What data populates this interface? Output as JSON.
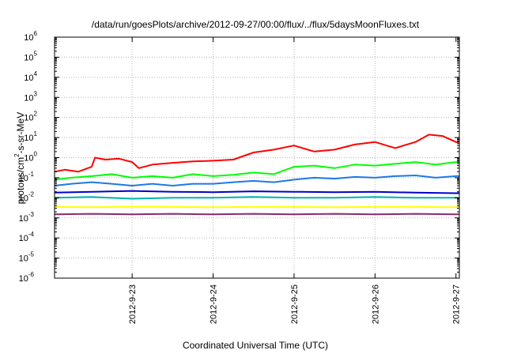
{
  "chart_data": {
    "type": "line",
    "title": "/data/run/goesPlots/archive/2012-09-27/00:00/flux/../flux/5daysMoonFluxes.txt",
    "xlabel": "Coordinated Universal Time (UTC)",
    "ylabel": "protons/cm²-s-sr-MeV",
    "ylabel_parts": {
      "pre": "protons/cm",
      "sup": "2",
      "post": "-s-sr-MeV"
    },
    "y_scale": "log",
    "ylim": [
      1e-06,
      1000000.0
    ],
    "y_ticks": [
      {
        "base": "10",
        "exp": "-6",
        "value": 1e-06
      },
      {
        "base": "10",
        "exp": "-5",
        "value": 1e-05
      },
      {
        "base": "10",
        "exp": "-4",
        "value": 0.0001
      },
      {
        "base": "10",
        "exp": "-3",
        "value": 0.001
      },
      {
        "base": "10",
        "exp": "-2",
        "value": 0.01
      },
      {
        "base": "10",
        "exp": "-1",
        "value": 0.1
      },
      {
        "base": "10",
        "exp": "0",
        "value": 1
      },
      {
        "base": "10",
        "exp": "1",
        "value": 10
      },
      {
        "base": "10",
        "exp": "2",
        "value": 100
      },
      {
        "base": "10",
        "exp": "3",
        "value": 1000
      },
      {
        "base": "10",
        "exp": "4",
        "value": 10000
      },
      {
        "base": "10",
        "exp": "5",
        "value": 100000
      },
      {
        "base": "10",
        "exp": "6",
        "value": 1000000
      }
    ],
    "x_ticks": [
      "2012-9-23",
      "2012-9-24",
      "2012-9-25",
      "2012-9-26",
      "2012-9-27"
    ],
    "xlim": [
      "2012-09-22 01:00",
      "2012-09-27 01:00"
    ],
    "grid": true,
    "legend": "none",
    "series": [
      {
        "color": "#ff0000",
        "x": [
          "2012-09-22 01:00",
          "2012-09-22 04:00",
          "2012-09-22 08:00",
          "2012-09-22 12:00",
          "2012-09-22 13:00",
          "2012-09-22 16:00",
          "2012-09-22 20:00",
          "2012-09-23 00:00",
          "2012-09-23 02:00",
          "2012-09-23 06:00",
          "2012-09-23 12:00",
          "2012-09-23 18:00",
          "2012-09-24 00:00",
          "2012-09-24 06:00",
          "2012-09-24 12:00",
          "2012-09-24 18:00",
          "2012-09-25 00:00",
          "2012-09-25 06:00",
          "2012-09-25 12:00",
          "2012-09-25 18:00",
          "2012-09-26 00:00",
          "2012-09-26 06:00",
          "2012-09-26 12:00",
          "2012-09-26 16:00",
          "2012-09-26 20:00",
          "2012-09-27 00:00",
          "2012-09-27 01:00"
        ],
        "y": [
          0.2,
          0.25,
          0.2,
          0.35,
          1.0,
          0.8,
          0.9,
          0.6,
          0.3,
          0.45,
          0.55,
          0.65,
          0.7,
          0.8,
          1.8,
          2.5,
          4.0,
          2.0,
          2.5,
          4.5,
          6.0,
          3.0,
          6.0,
          14.0,
          12.0,
          6.0,
          6.0
        ]
      },
      {
        "color": "#00ff00",
        "x": [
          "2012-09-22 01:00",
          "2012-09-22 06:00",
          "2012-09-22 12:00",
          "2012-09-22 18:00",
          "2012-09-23 00:00",
          "2012-09-23 06:00",
          "2012-09-23 12:00",
          "2012-09-23 18:00",
          "2012-09-24 00:00",
          "2012-09-24 06:00",
          "2012-09-24 12:00",
          "2012-09-24 18:00",
          "2012-09-25 00:00",
          "2012-09-25 06:00",
          "2012-09-25 12:00",
          "2012-09-25 18:00",
          "2012-09-26 00:00",
          "2012-09-26 06:00",
          "2012-09-26 12:00",
          "2012-09-26 18:00",
          "2012-09-27 00:00",
          "2012-09-27 01:00"
        ],
        "y": [
          0.08,
          0.1,
          0.12,
          0.15,
          0.1,
          0.12,
          0.1,
          0.15,
          0.12,
          0.14,
          0.18,
          0.15,
          0.35,
          0.4,
          0.3,
          0.45,
          0.4,
          0.5,
          0.6,
          0.45,
          0.6,
          0.6
        ]
      },
      {
        "color": "#1e78e6",
        "x": [
          "2012-09-22 01:00",
          "2012-09-22 06:00",
          "2012-09-22 12:00",
          "2012-09-22 18:00",
          "2012-09-23 00:00",
          "2012-09-23 06:00",
          "2012-09-23 12:00",
          "2012-09-23 18:00",
          "2012-09-24 00:00",
          "2012-09-24 06:00",
          "2012-09-24 12:00",
          "2012-09-24 18:00",
          "2012-09-25 00:00",
          "2012-09-25 06:00",
          "2012-09-25 12:00",
          "2012-09-25 18:00",
          "2012-09-26 00:00",
          "2012-09-26 06:00",
          "2012-09-26 12:00",
          "2012-09-26 18:00",
          "2012-09-27 00:00",
          "2012-09-27 01:00"
        ],
        "y": [
          0.04,
          0.05,
          0.06,
          0.05,
          0.04,
          0.05,
          0.04,
          0.05,
          0.05,
          0.06,
          0.07,
          0.06,
          0.08,
          0.1,
          0.09,
          0.11,
          0.1,
          0.12,
          0.13,
          0.1,
          0.12,
          0.12
        ]
      },
      {
        "color": "#0000cd",
        "x": [
          "2012-09-22 01:00",
          "2012-09-22 12:00",
          "2012-09-23 00:00",
          "2012-09-23 12:00",
          "2012-09-24 00:00",
          "2012-09-24 12:00",
          "2012-09-25 00:00",
          "2012-09-25 12:00",
          "2012-09-26 00:00",
          "2012-09-26 12:00",
          "2012-09-27 00:00",
          "2012-09-27 01:00"
        ],
        "y": [
          0.018,
          0.02,
          0.022,
          0.02,
          0.019,
          0.021,
          0.02,
          0.019,
          0.02,
          0.018,
          0.017,
          0.017
        ]
      },
      {
        "color": "#00b4b4",
        "x": [
          "2012-09-22 01:00",
          "2012-09-22 12:00",
          "2012-09-23 00:00",
          "2012-09-23 12:00",
          "2012-09-24 00:00",
          "2012-09-24 12:00",
          "2012-09-25 00:00",
          "2012-09-25 12:00",
          "2012-09-26 00:00",
          "2012-09-26 12:00",
          "2012-09-27 00:00",
          "2012-09-27 01:00"
        ],
        "y": [
          0.01,
          0.011,
          0.009,
          0.01,
          0.01,
          0.011,
          0.01,
          0.01,
          0.011,
          0.01,
          0.01,
          0.01
        ]
      },
      {
        "color": "#ffff00",
        "x": [
          "2012-09-22 01:00",
          "2012-09-22 12:00",
          "2012-09-23 00:00",
          "2012-09-23 12:00",
          "2012-09-24 00:00",
          "2012-09-24 12:00",
          "2012-09-25 00:00",
          "2012-09-25 12:00",
          "2012-09-26 00:00",
          "2012-09-26 12:00",
          "2012-09-27 00:00",
          "2012-09-27 01:00"
        ],
        "y": [
          0.0035,
          0.0034,
          0.0036,
          0.0035,
          0.0034,
          0.0035,
          0.0035,
          0.0034,
          0.0035,
          0.0035,
          0.0034,
          0.0034
        ]
      },
      {
        "color": "#8b2a6a",
        "x": [
          "2012-09-22 01:00",
          "2012-09-22 12:00",
          "2012-09-23 00:00",
          "2012-09-23 12:00",
          "2012-09-24 00:00",
          "2012-09-24 12:00",
          "2012-09-25 00:00",
          "2012-09-25 12:00",
          "2012-09-26 00:00",
          "2012-09-26 12:00",
          "2012-09-27 00:00",
          "2012-09-27 01:00"
        ],
        "y": [
          0.0015,
          0.0016,
          0.0015,
          0.0016,
          0.0015,
          0.0016,
          0.0015,
          0.0016,
          0.0015,
          0.0016,
          0.0015,
          0.0015
        ]
      }
    ]
  }
}
